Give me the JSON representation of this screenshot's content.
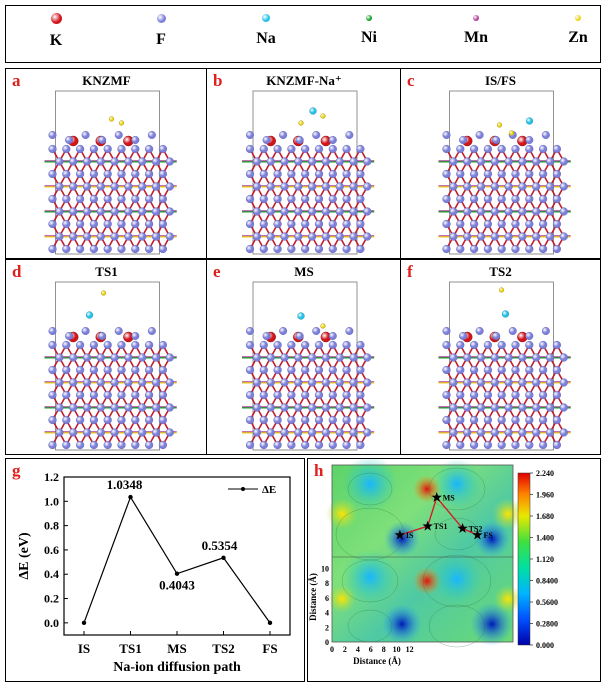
{
  "legend": [
    {
      "symbol": "K",
      "color": "#d2151b",
      "size": 11
    },
    {
      "symbol": "F",
      "color": "#7b7fd8",
      "size": 9
    },
    {
      "symbol": "Na",
      "color": "#22c1e6",
      "size": 8
    },
    {
      "symbol": "Ni",
      "color": "#13a22a",
      "size": 6
    },
    {
      "symbol": "Mn",
      "color": "#b0409a",
      "size": 6
    },
    {
      "symbol": "Zn",
      "color": "#ecd214",
      "size": 6
    }
  ],
  "panels": [
    {
      "letter": "a",
      "title": "KNZMF"
    },
    {
      "letter": "b",
      "title": "KNZMF-Na⁺"
    },
    {
      "letter": "c",
      "title": "IS/FS"
    },
    {
      "letter": "d",
      "title": "TS1"
    },
    {
      "letter": "e",
      "title": "MS"
    },
    {
      "letter": "f",
      "title": "TS2"
    }
  ],
  "energy_panel": {
    "letter": "g"
  },
  "map_panel": {
    "letter": "h"
  },
  "chart_data": [
    {
      "type": "line",
      "categories": [
        "IS",
        "TS1",
        "MS",
        "TS2",
        "FS"
      ],
      "series": [
        {
          "name": "ΔE",
          "values": [
            0.0,
            1.0348,
            0.4043,
            0.5354,
            0.0
          ]
        }
      ],
      "data_labels": [
        "1.0348",
        "0.4043",
        "0.5354"
      ],
      "xlabel": "Na-ion diffusion path",
      "ylabel": "ΔE (eV)",
      "ylim": [
        -0.1,
        1.2
      ],
      "yticks": [
        "0.0",
        "0.2",
        "0.4",
        "0.6",
        "0.8",
        "1.0",
        "1.2"
      ],
      "legend_placement": "top-right",
      "grid": false
    },
    {
      "type": "heatmap",
      "xlabel": "Distance (Å)",
      "ylabel": "Distance (Å)",
      "xticks": [
        "0",
        "2",
        "4",
        "6",
        "8",
        "10",
        "12"
      ],
      "yticks": [
        "0",
        "2",
        "4",
        "6",
        "8",
        "10"
      ],
      "colorbar_ticks": [
        "2.240",
        "1.960",
        "1.680",
        "1.400",
        "1.120",
        "0.8400",
        "0.5600",
        "0.2800",
        "0.000"
      ],
      "colorbar_range": [
        0.0,
        2.24
      ],
      "points": [
        {
          "label": "IS",
          "x": 10.5,
          "y": 14.5
        },
        {
          "label": "TS1",
          "x": 14.8,
          "y": 15.7
        },
        {
          "label": "MS",
          "x": 16.2,
          "y": 19.6
        },
        {
          "label": "TS2",
          "x": 20.2,
          "y": 15.4
        },
        {
          "label": "FS",
          "x": 22.5,
          "y": 14.5
        }
      ]
    }
  ]
}
